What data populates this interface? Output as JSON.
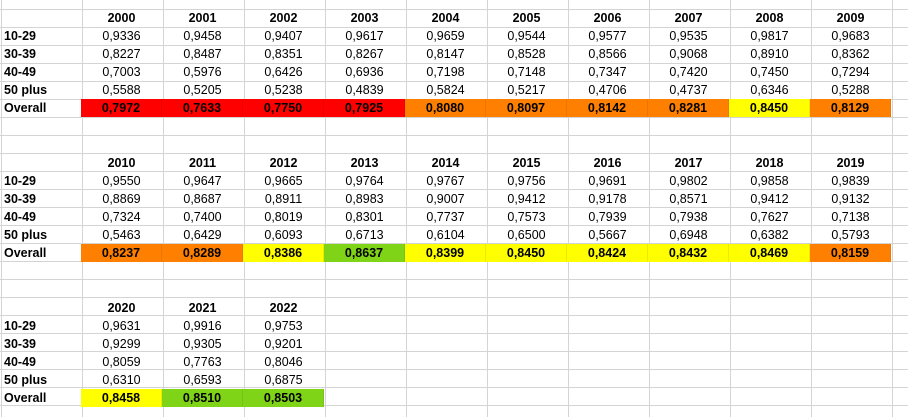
{
  "colors": {
    "red": "#ff0000",
    "orange": "#ff8000",
    "yellow": "#ffff00",
    "green": "#80d418"
  },
  "row_labels": [
    "10-29",
    "30-39",
    "40-49",
    "50 plus",
    "Overall"
  ],
  "blocks": [
    {
      "years": [
        "2000",
        "2001",
        "2002",
        "2003",
        "2004",
        "2005",
        "2006",
        "2007",
        "2008",
        "2009"
      ],
      "rows": [
        [
          "0,9336",
          "0,9458",
          "0,9407",
          "0,9617",
          "0,9659",
          "0,9544",
          "0,9577",
          "0,9535",
          "0,9817",
          "0,9683"
        ],
        [
          "0,8227",
          "0,8487",
          "0,8351",
          "0,8267",
          "0,8147",
          "0,8528",
          "0,8566",
          "0,9068",
          "0,8910",
          "0,8362"
        ],
        [
          "0,7003",
          "0,5976",
          "0,6426",
          "0,6936",
          "0,7198",
          "0,7148",
          "0,7347",
          "0,7420",
          "0,7450",
          "0,7294"
        ],
        [
          "0,5588",
          "0,5205",
          "0,5238",
          "0,4839",
          "0,5824",
          "0,5217",
          "0,4706",
          "0,4737",
          "0,6346",
          "0,5288"
        ]
      ],
      "overall": [
        "0,7972",
        "0,7633",
        "0,7750",
        "0,7925",
        "0,8080",
        "0,8097",
        "0,8142",
        "0,8281",
        "0,8450",
        "0,8129"
      ],
      "overall_fill": [
        "red",
        "red",
        "red",
        "red",
        "orange",
        "orange",
        "orange",
        "orange",
        "yellow",
        "orange"
      ]
    },
    {
      "years": [
        "2010",
        "2011",
        "2012",
        "2013",
        "2014",
        "2015",
        "2016",
        "2017",
        "2018",
        "2019"
      ],
      "rows": [
        [
          "0,9550",
          "0,9647",
          "0,9665",
          "0,9764",
          "0,9767",
          "0,9756",
          "0,9691",
          "0,9802",
          "0,9858",
          "0,9839"
        ],
        [
          "0,8869",
          "0,8687",
          "0,8911",
          "0,8983",
          "0,9007",
          "0,9412",
          "0,9178",
          "0,8571",
          "0,9412",
          "0,9132"
        ],
        [
          "0,7324",
          "0,7400",
          "0,8019",
          "0,8301",
          "0,7737",
          "0,7573",
          "0,7939",
          "0,7938",
          "0,7627",
          "0,7138"
        ],
        [
          "0,5463",
          "0,6429",
          "0,6093",
          "0,6713",
          "0,6104",
          "0,6500",
          "0,5667",
          "0,6948",
          "0,6382",
          "0,5793"
        ]
      ],
      "overall": [
        "0,8237",
        "0,8289",
        "0,8386",
        "0,8637",
        "0,8399",
        "0,8450",
        "0,8424",
        "0,8432",
        "0,8469",
        "0,8159"
      ],
      "overall_fill": [
        "orange",
        "orange",
        "yellow",
        "green",
        "yellow",
        "yellow",
        "yellow",
        "yellow",
        "yellow",
        "orange"
      ]
    },
    {
      "years": [
        "2020",
        "2021",
        "2022"
      ],
      "rows": [
        [
          "0,9631",
          "0,9916",
          "0,9753"
        ],
        [
          "0,9299",
          "0,9305",
          "0,9201"
        ],
        [
          "0,8059",
          "0,7763",
          "0,8046"
        ],
        [
          "0,6310",
          "0,6593",
          "0,6875"
        ]
      ],
      "overall": [
        "0,8458",
        "0,8510",
        "0,8503"
      ],
      "overall_fill": [
        "yellow",
        "green",
        "green"
      ]
    }
  ]
}
